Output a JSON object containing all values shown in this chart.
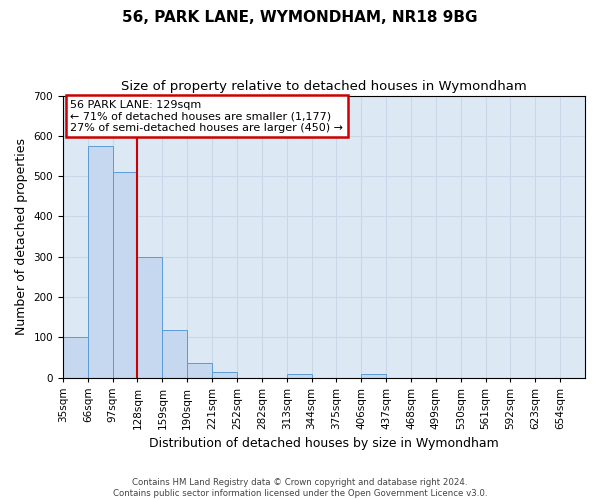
{
  "title": "56, PARK LANE, WYMONDHAM, NR18 9BG",
  "subtitle": "Size of property relative to detached houses in Wymondham",
  "xlabel": "Distribution of detached houses by size in Wymondham",
  "ylabel": "Number of detached properties",
  "bin_labels": [
    "35sqm",
    "66sqm",
    "97sqm",
    "128sqm",
    "159sqm",
    "190sqm",
    "221sqm",
    "252sqm",
    "282sqm",
    "313sqm",
    "344sqm",
    "375sqm",
    "406sqm",
    "437sqm",
    "468sqm",
    "499sqm",
    "530sqm",
    "561sqm",
    "592sqm",
    "623sqm",
    "654sqm"
  ],
  "bar_values": [
    100,
    575,
    510,
    300,
    118,
    36,
    14,
    0,
    0,
    8,
    0,
    0,
    8,
    0,
    0,
    0,
    0,
    0,
    0,
    0,
    0
  ],
  "bar_color": "#c5d8f0",
  "bar_edge_color": "#5b9bd5",
  "grid_color": "#c8d8e8",
  "background_color": "#dce9f5",
  "vline_x": 3,
  "vline_color": "#cc0000",
  "annotation_text": "56 PARK LANE: 129sqm\n← 71% of detached houses are smaller (1,177)\n27% of semi-detached houses are larger (450) →",
  "annotation_box_color": "#cc0000",
  "ylim": [
    0,
    700
  ],
  "yticks": [
    0,
    100,
    200,
    300,
    400,
    500,
    600,
    700
  ],
  "footnote": "Contains HM Land Registry data © Crown copyright and database right 2024.\nContains public sector information licensed under the Open Government Licence v3.0.",
  "title_fontsize": 11,
  "subtitle_fontsize": 9.5,
  "xlabel_fontsize": 9,
  "ylabel_fontsize": 9,
  "annot_fontsize": 8,
  "tick_fontsize": 7.5
}
